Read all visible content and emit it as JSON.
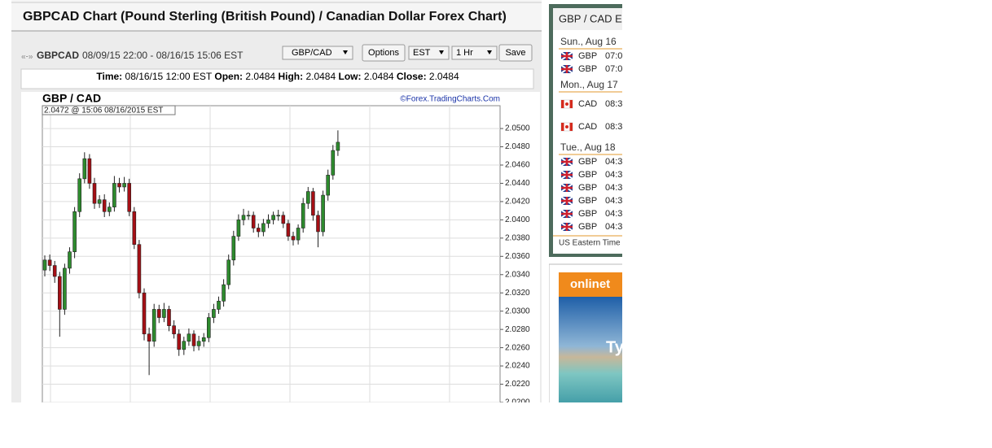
{
  "header": {
    "title": "GBPCAD Chart (Pound Sterling (British Pound) / Canadian Dollar Forex Chart)"
  },
  "toolbar": {
    "nav": "«-»",
    "symbol": "GBPCAD",
    "range": "08/09/15 22:00 - 08/16/15 15:06 EST",
    "pair_select": "GBP/CAD",
    "options": "Options",
    "tz_select": "EST",
    "interval_select": "1 Hr",
    "save": "Save"
  },
  "info": {
    "time_label": "Time:",
    "time": "08/16/15 12:00 EST",
    "open_label": "Open:",
    "open": "2.0484",
    "high_label": "High:",
    "high": "2.0484",
    "low_label": "Low:",
    "low": "2.0484",
    "close_label": "Close:",
    "close": "2.0484"
  },
  "chart_data": {
    "type": "candlestick",
    "title": "GBP / CAD",
    "subtitle": "2.0472 @ 15:06  08/16/2015 EST",
    "source": "©Forex.TradingCharts.Com",
    "open": [
      2.0345,
      2.0356,
      2.035,
      2.0338,
      2.0302,
      2.0347,
      2.0365,
      2.0409,
      2.0445,
      2.0467,
      2.044,
      2.0418,
      2.0422,
      2.0409,
      2.0414,
      2.044,
      2.0436,
      2.044,
      2.0409,
      2.0373,
      2.032,
      2.0275,
      2.0267,
      2.0302,
      2.0293,
      2.0302,
      2.0284,
      2.0275,
      2.0258,
      2.0267,
      2.0275,
      2.0262,
      2.0267,
      2.0271,
      2.0293,
      2.0302,
      2.0311,
      2.0329,
      2.0356,
      2.0382,
      2.04,
      2.0405,
      2.0405,
      2.0391,
      2.0387,
      2.0396,
      2.04,
      2.0405,
      2.0405,
      2.0396,
      2.0382,
      2.0378,
      2.0391,
      2.0418,
      2.0431,
      2.0405,
      2.0387,
      2.0427,
      2.0449,
      2.0476
    ],
    "high": [
      2.0361,
      2.0362,
      2.0355,
      2.0343,
      2.0352,
      2.037,
      2.0414,
      2.0451,
      2.0474,
      2.0472,
      2.0446,
      2.0427,
      2.0428,
      2.0419,
      2.0448,
      2.0446,
      2.0447,
      2.0445,
      2.0414,
      2.0378,
      2.0325,
      2.0282,
      2.0308,
      2.0307,
      2.0309,
      2.0306,
      2.029,
      2.028,
      2.0272,
      2.0281,
      2.0279,
      2.0273,
      2.0276,
      2.0298,
      2.0308,
      2.0316,
      2.0335,
      2.0362,
      2.0388,
      2.0406,
      2.0412,
      2.041,
      2.0409,
      2.0396,
      2.0401,
      2.0406,
      2.0409,
      2.0411,
      2.0409,
      2.04,
      2.0387,
      2.0395,
      2.0424,
      2.0436,
      2.0435,
      2.041,
      2.0432,
      2.0455,
      2.0482,
      2.0498
    ],
    "low": [
      2.0338,
      2.0344,
      2.0331,
      2.0272,
      2.0296,
      2.0341,
      2.0358,
      2.0403,
      2.044,
      2.0434,
      2.0412,
      2.0413,
      2.0403,
      2.0404,
      2.0409,
      2.043,
      2.0431,
      2.0404,
      2.0368,
      2.0314,
      2.0268,
      2.023,
      2.0261,
      2.0287,
      2.0288,
      2.0278,
      2.027,
      2.0251,
      2.0252,
      2.0262,
      2.0256,
      2.0257,
      2.0261,
      2.0266,
      2.0287,
      2.0297,
      2.0305,
      2.0324,
      2.035,
      2.0377,
      2.0394,
      2.04,
      2.0386,
      2.0381,
      2.0382,
      2.0391,
      2.0395,
      2.0399,
      2.0391,
      2.0377,
      2.0372,
      2.0373,
      2.0386,
      2.0412,
      2.0399,
      2.037,
      2.0382,
      2.0421,
      2.0444,
      2.047
    ],
    "close": [
      2.0356,
      2.035,
      2.0338,
      2.0302,
      2.0347,
      2.0365,
      2.0409,
      2.0445,
      2.0467,
      2.044,
      2.0418,
      2.0422,
      2.0409,
      2.0414,
      2.044,
      2.0436,
      2.044,
      2.0409,
      2.0373,
      2.032,
      2.0275,
      2.0267,
      2.0302,
      2.0293,
      2.0302,
      2.0284,
      2.0275,
      2.0258,
      2.0267,
      2.0275,
      2.0262,
      2.0267,
      2.0271,
      2.0293,
      2.0302,
      2.0311,
      2.0329,
      2.0356,
      2.0382,
      2.04,
      2.0405,
      2.0405,
      2.0391,
      2.0387,
      2.0396,
      2.04,
      2.0405,
      2.0405,
      2.0396,
      2.0382,
      2.0378,
      2.0391,
      2.0418,
      2.0431,
      2.0405,
      2.0387,
      2.0427,
      2.0449,
      2.0476,
      2.0485
    ],
    "ylim": [
      2.02,
      2.0525
    ],
    "yticks": [
      {
        "value": 2.05,
        "label": "2.0500"
      },
      {
        "value": 2.048,
        "label": "2.0480"
      },
      {
        "value": 2.046,
        "label": "2.0460"
      },
      {
        "value": 2.044,
        "label": "2.0440"
      },
      {
        "value": 2.042,
        "label": "2.0420"
      },
      {
        "value": 2.04,
        "label": "2.0400"
      },
      {
        "value": 2.038,
        "label": "2.0380"
      },
      {
        "value": 2.036,
        "label": "2.0360"
      },
      {
        "value": 2.034,
        "label": "2.0340"
      },
      {
        "value": 2.032,
        "label": "2.0320"
      },
      {
        "value": 2.03,
        "label": "2.0300"
      },
      {
        "value": 2.028,
        "label": "2.0280"
      },
      {
        "value": 2.026,
        "label": "2.0260"
      },
      {
        "value": 2.024,
        "label": "2.0240"
      },
      {
        "value": 2.022,
        "label": "2.0220"
      },
      {
        "value": 2.02,
        "label": "2.0200"
      }
    ],
    "grid": true,
    "up_color": "#2e8b2e",
    "down_color": "#a50f15"
  },
  "sidebar": {
    "title": "GBP / CAD E",
    "days": [
      {
        "label": "Sun., Aug 16",
        "events": [
          {
            "currency": "GBP",
            "time": "07:0"
          },
          {
            "currency": "GBP",
            "time": "07:0"
          }
        ]
      },
      {
        "label": "Mon., Aug 17",
        "events": [
          {
            "currency": "CAD",
            "time": "08:3"
          },
          {
            "currency": "CAD",
            "time": "08:3"
          }
        ]
      },
      {
        "label": "Tue., Aug 18",
        "events": [
          {
            "currency": "GBP",
            "time": "04:3"
          },
          {
            "currency": "GBP",
            "time": "04:3"
          },
          {
            "currency": "GBP",
            "time": "04:3"
          },
          {
            "currency": "GBP",
            "time": "04:3"
          },
          {
            "currency": "GBP",
            "time": "04:3"
          },
          {
            "currency": "GBP",
            "time": "04:3"
          }
        ]
      }
    ],
    "footer": "US Eastern Time"
  },
  "ad": {
    "brand": "onlinet",
    "headline": "Ty"
  }
}
